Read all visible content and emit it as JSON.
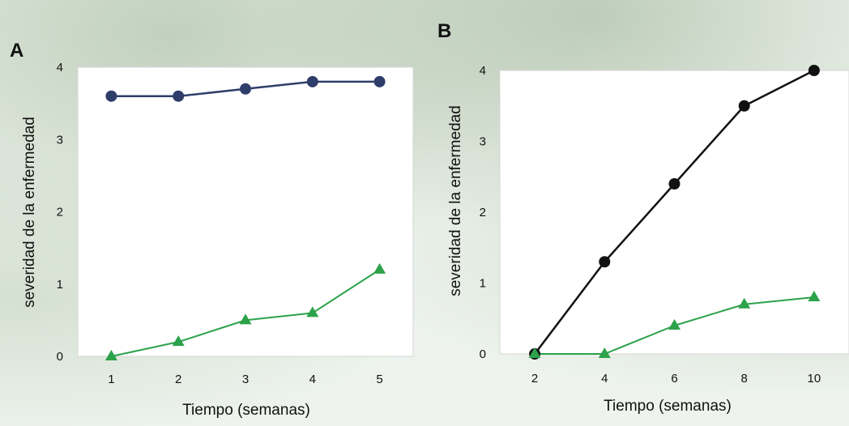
{
  "chart_data": [
    {
      "type": "line",
      "panel_label": "A",
      "xlabel": "Tiempo (semanas)",
      "ylabel": "severidad de la enfermedad",
      "x": [
        1,
        2,
        3,
        4,
        5
      ],
      "xlim": [
        0.5,
        5.5
      ],
      "ylim": [
        0,
        4
      ],
      "yticks": [
        0,
        1,
        2,
        3,
        4
      ],
      "series": [
        {
          "values": [
            3.6,
            3.6,
            3.7,
            3.8,
            3.8
          ],
          "color": "#2f3d6b",
          "marker": "circle"
        },
        {
          "values": [
            0,
            0.2,
            0.5,
            0.6,
            1.2
          ],
          "color": "#2ca24a",
          "marker": "triangle"
        }
      ]
    },
    {
      "type": "line",
      "panel_label": "B",
      "xlabel": "Tiempo (semanas)",
      "ylabel": "severidad de la enfermedad",
      "x": [
        2,
        4,
        6,
        8,
        10
      ],
      "xlim": [
        1,
        11
      ],
      "ylim": [
        0,
        4
      ],
      "yticks": [
        0,
        1,
        2,
        3,
        4
      ],
      "series": [
        {
          "values": [
            0,
            1.3,
            2.4,
            3.5,
            4.0
          ],
          "color": "#111111",
          "marker": "circle"
        },
        {
          "values": [
            0,
            0,
            0.4,
            0.7,
            0.8
          ],
          "color": "#2ca24a",
          "marker": "triangle"
        }
      ]
    }
  ]
}
